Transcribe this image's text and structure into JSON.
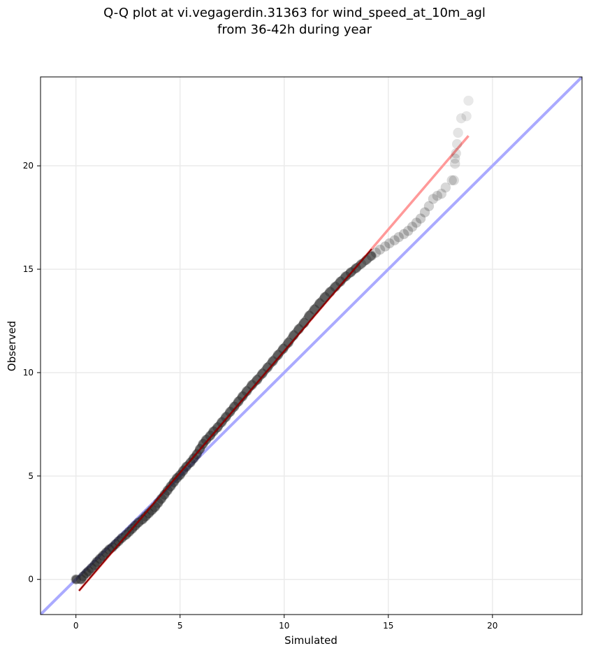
{
  "chart_data": {
    "type": "scatter",
    "title_lines": [
      "Q-Q plot at vi.vegagerdin.31363 for wind_speed_at_10m_agl",
      "from 36-42h during year"
    ],
    "xlabel": "Simulated",
    "ylabel": "Observed",
    "xlim": [
      -1.7,
      24.3
    ],
    "ylim": [
      -1.7,
      24.3
    ],
    "xticks": [
      0,
      5,
      10,
      15,
      20
    ],
    "yticks": [
      0,
      5,
      10,
      15,
      20
    ],
    "xtick_labels": [
      "0",
      "5",
      "10",
      "15",
      "20"
    ],
    "ytick_labels": [
      "0",
      "5",
      "10",
      "15",
      "20"
    ],
    "grid": true,
    "reference_line": {
      "name": "1:1",
      "color": "#aaaaff",
      "points": [
        [
          -1.7,
          -1.7
        ],
        [
          24.3,
          24.3
        ]
      ]
    },
    "fit_line": {
      "name": "fit",
      "color": "#ff9999",
      "points": [
        [
          0.15,
          -0.55
        ],
        [
          18.85,
          21.45
        ]
      ]
    },
    "series": [
      {
        "marker_color": "#000000",
        "points": [
          [
            0.0,
            0.0
          ],
          [
            0.25,
            0.0
          ],
          [
            0.35,
            0.15
          ],
          [
            0.5,
            0.3
          ],
          [
            0.6,
            0.4
          ],
          [
            0.75,
            0.55
          ],
          [
            0.9,
            0.7
          ],
          [
            1.0,
            0.85
          ],
          [
            1.15,
            1.0
          ],
          [
            1.3,
            1.15
          ],
          [
            1.45,
            1.3
          ],
          [
            1.6,
            1.45
          ],
          [
            1.75,
            1.55
          ],
          [
            1.9,
            1.7
          ],
          [
            2.05,
            1.85
          ],
          [
            2.2,
            2.0
          ],
          [
            2.4,
            2.15
          ],
          [
            2.55,
            2.3
          ],
          [
            2.7,
            2.45
          ],
          [
            2.85,
            2.6
          ],
          [
            3.0,
            2.75
          ],
          [
            3.2,
            2.9
          ],
          [
            3.35,
            3.05
          ],
          [
            3.5,
            3.2
          ],
          [
            3.65,
            3.35
          ],
          [
            3.8,
            3.5
          ],
          [
            3.95,
            3.7
          ],
          [
            4.1,
            3.9
          ],
          [
            4.25,
            4.1
          ],
          [
            4.4,
            4.3
          ],
          [
            4.55,
            4.5
          ],
          [
            4.7,
            4.7
          ],
          [
            4.85,
            4.9
          ],
          [
            5.0,
            5.05
          ],
          [
            5.15,
            5.25
          ],
          [
            5.3,
            5.45
          ],
          [
            5.5,
            5.65
          ],
          [
            5.65,
            5.85
          ],
          [
            5.8,
            6.05
          ],
          [
            5.95,
            6.3
          ],
          [
            6.1,
            6.55
          ],
          [
            6.25,
            6.75
          ],
          [
            6.45,
            6.95
          ],
          [
            6.6,
            7.15
          ],
          [
            6.8,
            7.35
          ],
          [
            7.0,
            7.6
          ],
          [
            7.2,
            7.85
          ],
          [
            7.4,
            8.1
          ],
          [
            7.6,
            8.35
          ],
          [
            7.8,
            8.6
          ],
          [
            8.0,
            8.85
          ],
          [
            8.2,
            9.1
          ],
          [
            8.45,
            9.4
          ],
          [
            8.7,
            9.65
          ],
          [
            8.95,
            9.95
          ],
          [
            9.2,
            10.25
          ],
          [
            9.45,
            10.55
          ],
          [
            9.7,
            10.85
          ],
          [
            9.95,
            11.15
          ],
          [
            10.2,
            11.45
          ],
          [
            10.45,
            11.8
          ],
          [
            10.7,
            12.1
          ],
          [
            10.95,
            12.4
          ],
          [
            11.2,
            12.75
          ],
          [
            11.45,
            13.05
          ],
          [
            11.7,
            13.35
          ],
          [
            11.95,
            13.65
          ],
          [
            12.2,
            13.9
          ],
          [
            12.45,
            14.15
          ],
          [
            12.7,
            14.4
          ],
          [
            12.95,
            14.65
          ],
          [
            13.2,
            14.85
          ],
          [
            13.45,
            15.05
          ],
          [
            13.7,
            15.25
          ],
          [
            13.95,
            15.45
          ],
          [
            14.2,
            15.65
          ],
          [
            14.4,
            15.8
          ],
          [
            14.6,
            15.95
          ],
          [
            14.85,
            16.1
          ],
          [
            15.05,
            16.25
          ],
          [
            15.3,
            16.4
          ],
          [
            15.5,
            16.55
          ],
          [
            15.75,
            16.7
          ],
          [
            15.95,
            16.85
          ],
          [
            16.15,
            17.05
          ],
          [
            16.35,
            17.25
          ],
          [
            16.55,
            17.45
          ],
          [
            16.75,
            17.75
          ],
          [
            16.95,
            18.05
          ],
          [
            17.15,
            18.4
          ],
          [
            17.35,
            18.55
          ],
          [
            17.55,
            18.65
          ],
          [
            17.75,
            18.95
          ],
          [
            18.05,
            19.3
          ],
          [
            18.15,
            19.3
          ],
          [
            18.2,
            20.1
          ],
          [
            18.2,
            20.35
          ],
          [
            18.25,
            20.6
          ],
          [
            18.3,
            21.05
          ],
          [
            18.35,
            21.6
          ],
          [
            18.5,
            22.3
          ],
          [
            18.75,
            22.4
          ],
          [
            18.85,
            23.15
          ]
        ]
      }
    ]
  }
}
